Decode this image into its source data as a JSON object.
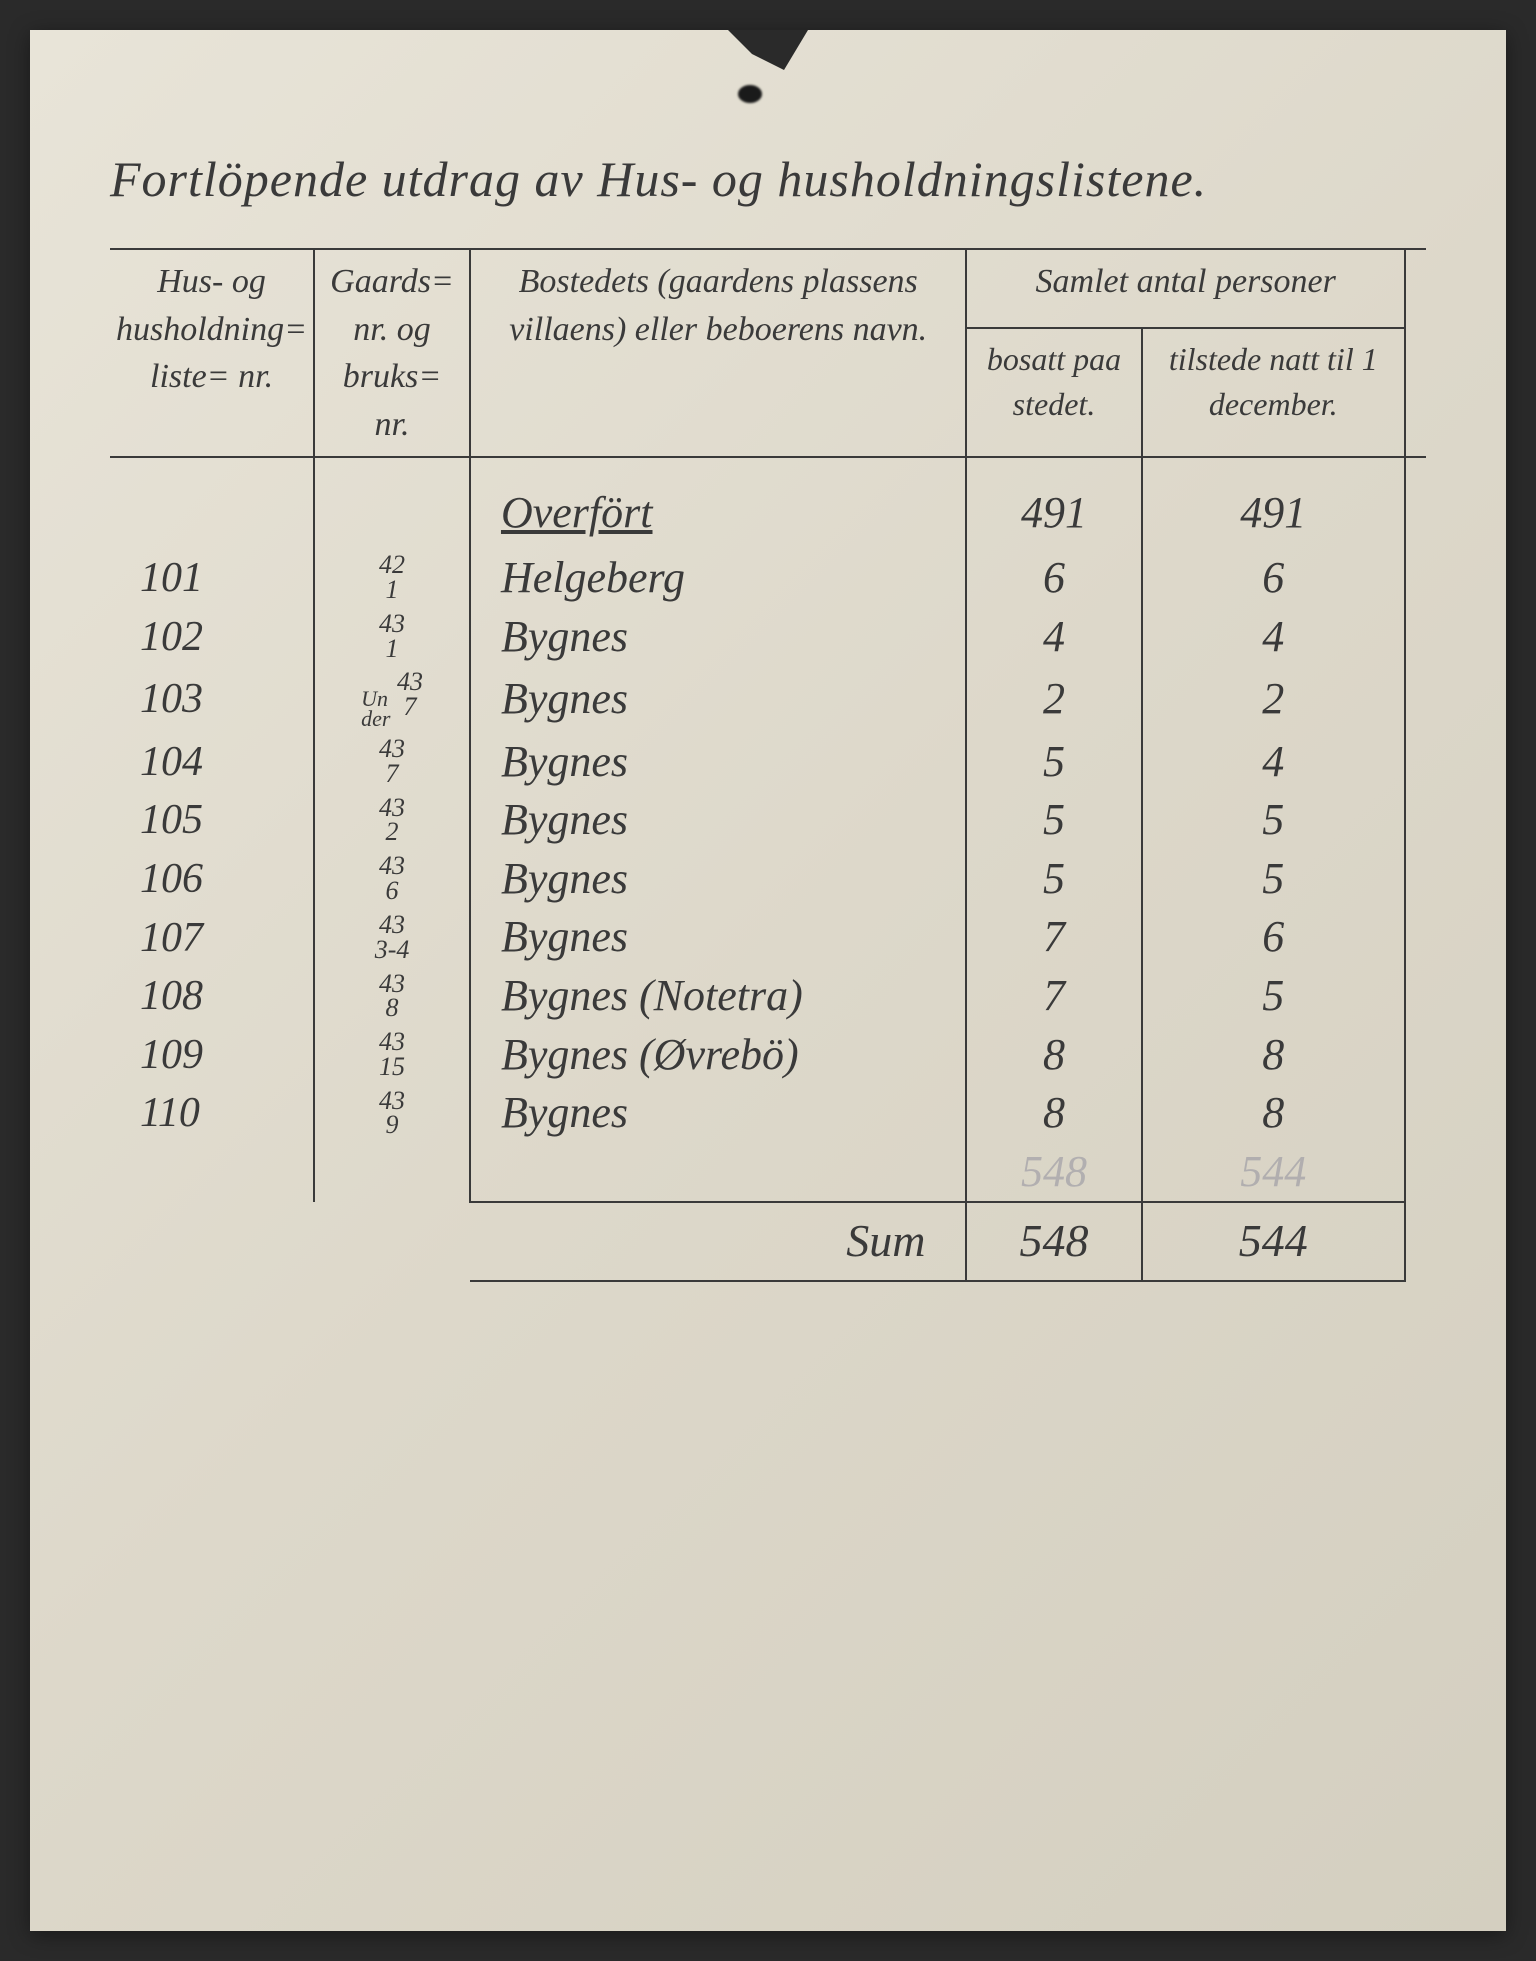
{
  "colors": {
    "ink": "#3a3a3a",
    "paper_light": "#e8e4d8",
    "paper_dark": "#d4cfc0",
    "background": "#2a2a2a",
    "faded_ink": "#8a8a9a"
  },
  "title": "Fortlöpende utdrag av Hus- og husholdningslistene.",
  "headers": {
    "liste": "Hus- og husholdning= liste= nr.",
    "gaard": "Gaards= nr. og bruks= nr.",
    "bosted": "Bostedets (gaardens plassens villaens) eller beboerens navn.",
    "samlet": "Samlet antal personer",
    "bosatt": "bosatt paa stedet.",
    "tilstede": "tilstede natt til 1 december."
  },
  "overfort": {
    "label": "Overfört",
    "bosatt": "491",
    "tilstede": "491"
  },
  "rows": [
    {
      "liste": "101",
      "gaard_top": "42",
      "gaard_bot": "1",
      "under": "",
      "navn": "Helgeberg",
      "bosatt": "6",
      "tilstede": "6"
    },
    {
      "liste": "102",
      "gaard_top": "43",
      "gaard_bot": "1",
      "under": "",
      "navn": "Bygnes",
      "bosatt": "4",
      "tilstede": "4"
    },
    {
      "liste": "103",
      "gaard_top": "43",
      "gaard_bot": "7",
      "under": "Un der",
      "navn": "Bygnes",
      "bosatt": "2",
      "tilstede": "2"
    },
    {
      "liste": "104",
      "gaard_top": "43",
      "gaard_bot": "7",
      "under": "",
      "navn": "Bygnes",
      "bosatt": "5",
      "tilstede": "4"
    },
    {
      "liste": "105",
      "gaard_top": "43",
      "gaard_bot": "2",
      "under": "",
      "navn": "Bygnes",
      "bosatt": "5",
      "tilstede": "5"
    },
    {
      "liste": "106",
      "gaard_top": "43",
      "gaard_bot": "6",
      "under": "",
      "navn": "Bygnes",
      "bosatt": "5",
      "tilstede": "5"
    },
    {
      "liste": "107",
      "gaard_top": "43",
      "gaard_bot": "3-4",
      "under": "",
      "navn": "Bygnes",
      "bosatt": "7",
      "tilstede": "6"
    },
    {
      "liste": "108",
      "gaard_top": "43",
      "gaard_bot": "8",
      "under": "",
      "navn": "Bygnes (Notetra)",
      "bosatt": "7",
      "tilstede": "5"
    },
    {
      "liste": "109",
      "gaard_top": "43",
      "gaard_bot": "15",
      "under": "",
      "navn": "Bygnes (Øvrebö)",
      "bosatt": "8",
      "tilstede": "8"
    },
    {
      "liste": "110",
      "gaard_top": "43",
      "gaard_bot": "9",
      "under": "",
      "navn": "Bygnes",
      "bosatt": "8",
      "tilstede": "8"
    }
  ],
  "faded_sum": {
    "bosatt": "548",
    "tilstede": "544"
  },
  "sum": {
    "label": "Sum",
    "bosatt": "548",
    "tilstede": "544"
  }
}
